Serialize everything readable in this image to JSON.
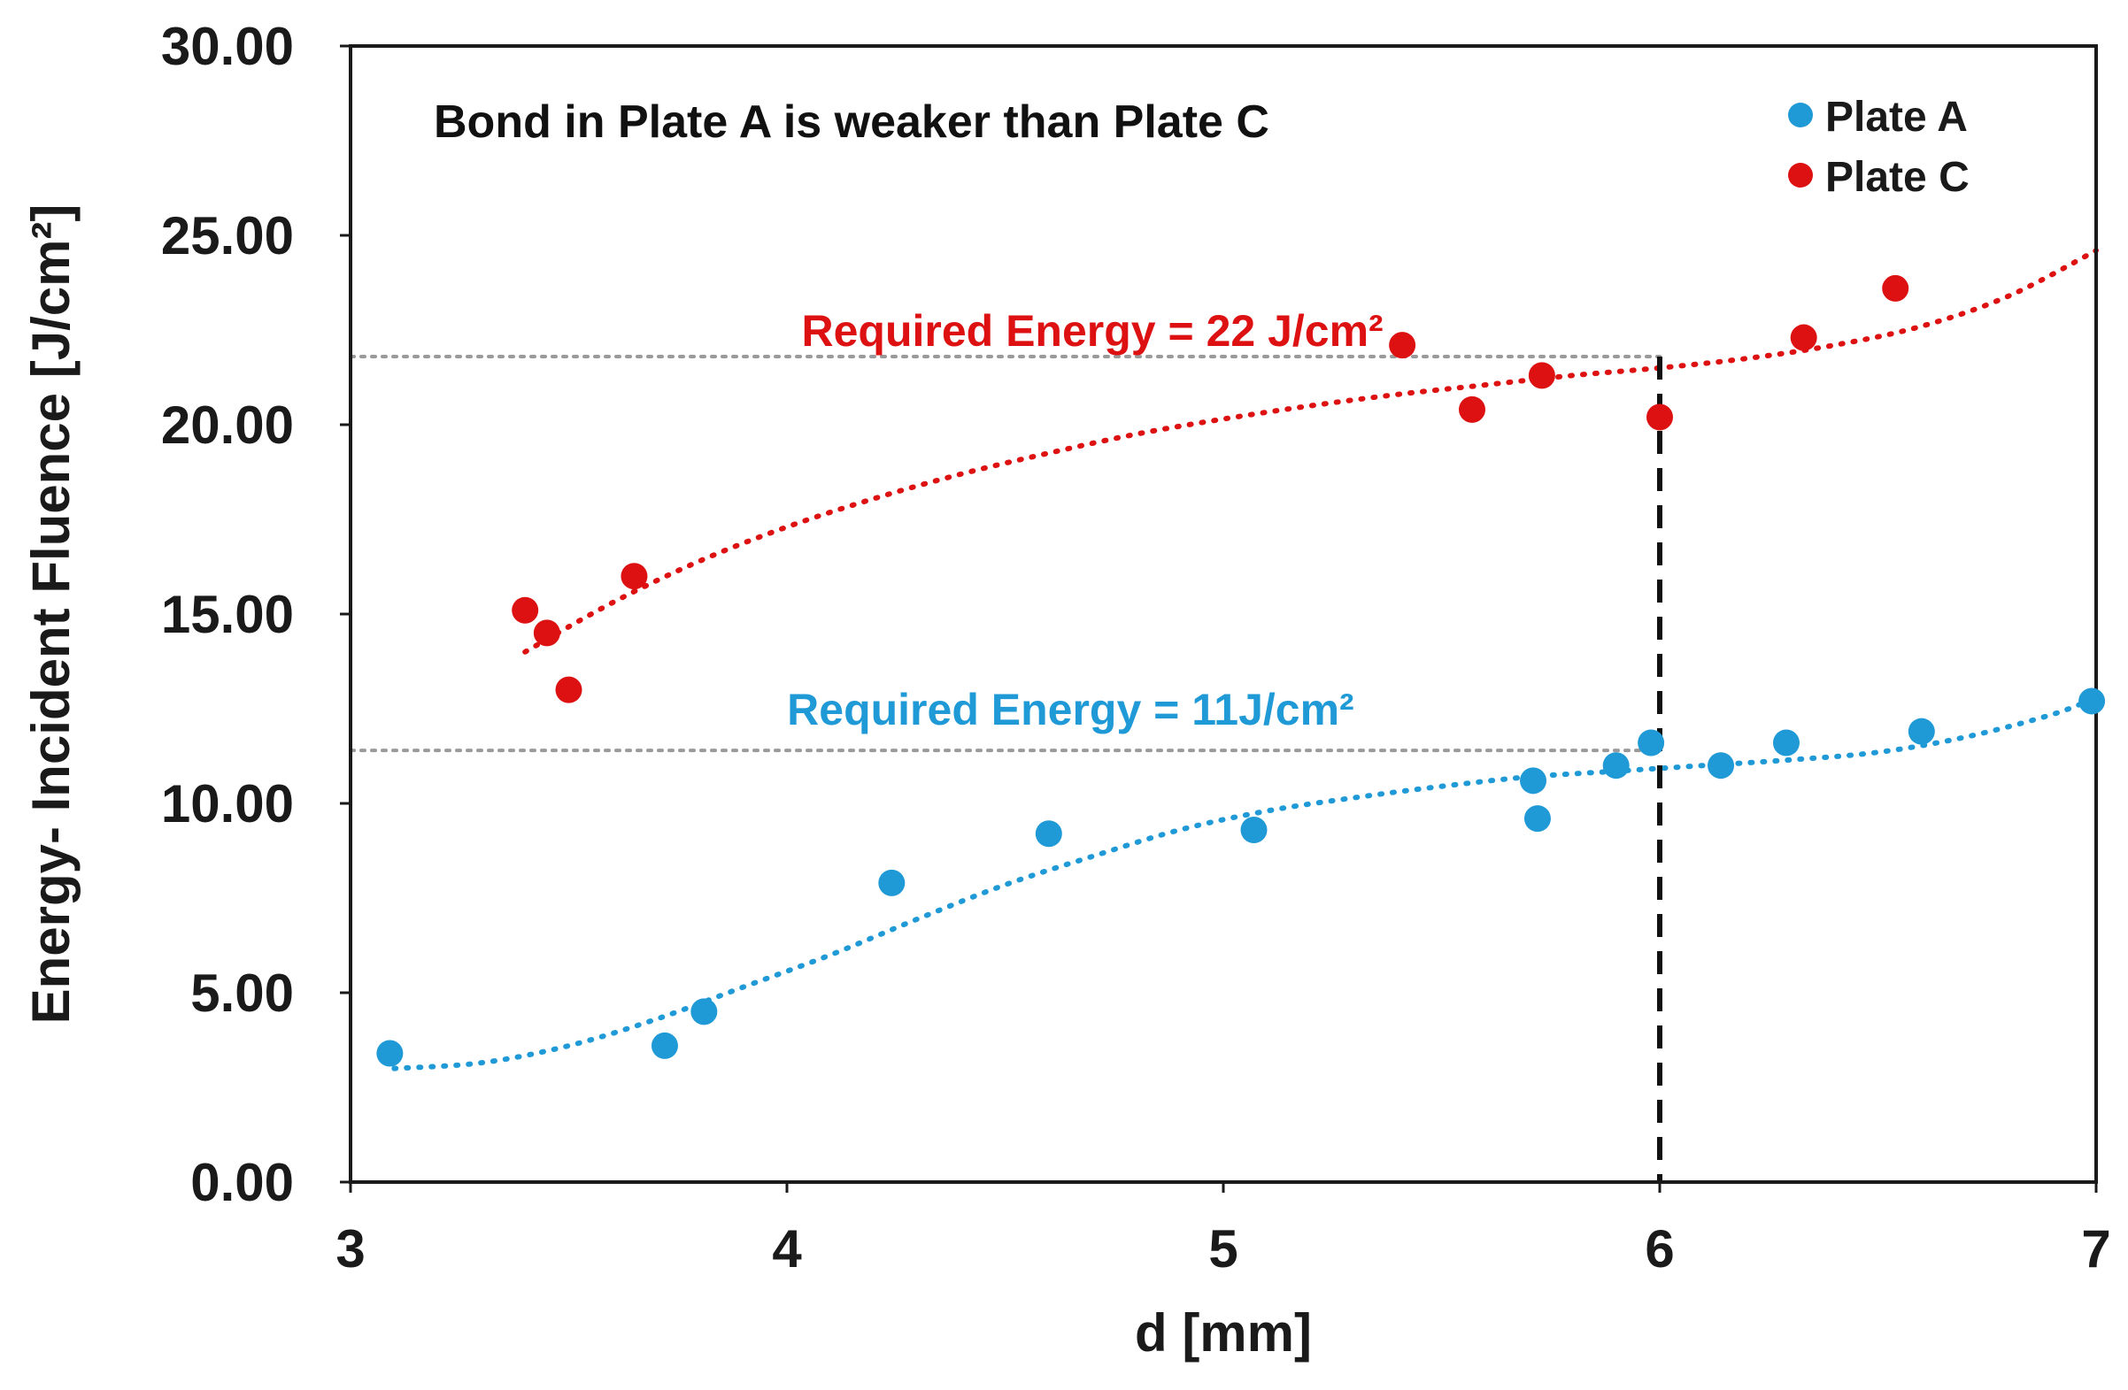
{
  "chart_data": {
    "type": "scatter",
    "title": "",
    "xlabel": "d [mm]",
    "ylabel": "Energy- Incident Fluence  [J/cm²]",
    "xlim": [
      3,
      7
    ],
    "ylim": [
      0,
      30
    ],
    "x_ticks": [
      "3",
      "4",
      "5",
      "6",
      "7"
    ],
    "y_ticks": [
      "0.00",
      "5.00",
      "10.00",
      "15.00",
      "20.00",
      "25.00",
      "30.00"
    ],
    "grid": false,
    "legend_position": "top-right",
    "annotation": "Bond in Plate A is weaker than Plate C",
    "series": [
      {
        "name": "Plate A",
        "color": "#1f9ad6",
        "points": [
          [
            3.09,
            3.4
          ],
          [
            3.72,
            3.6
          ],
          [
            3.81,
            4.5
          ],
          [
            4.24,
            7.9
          ],
          [
            4.6,
            9.2
          ],
          [
            5.07,
            9.3
          ],
          [
            5.71,
            10.6
          ],
          [
            5.72,
            9.6
          ],
          [
            5.9,
            11.0
          ],
          [
            5.98,
            11.6
          ],
          [
            6.14,
            11.0
          ],
          [
            6.29,
            11.6
          ],
          [
            6.6,
            11.9
          ],
          [
            6.99,
            12.7
          ]
        ],
        "trend": [
          [
            3.1,
            3.0
          ],
          [
            3.3,
            3.15
          ],
          [
            3.5,
            3.6
          ],
          [
            3.7,
            4.3
          ],
          [
            3.9,
            5.15
          ],
          [
            4.1,
            6.0
          ],
          [
            4.3,
            6.95
          ],
          [
            4.5,
            7.85
          ],
          [
            4.7,
            8.6
          ],
          [
            4.9,
            9.3
          ],
          [
            5.1,
            9.8
          ],
          [
            5.3,
            10.15
          ],
          [
            5.5,
            10.45
          ],
          [
            5.7,
            10.7
          ],
          [
            5.9,
            10.85
          ],
          [
            6.1,
            11.0
          ],
          [
            6.3,
            11.15
          ],
          [
            6.5,
            11.35
          ],
          [
            6.7,
            11.75
          ],
          [
            6.9,
            12.35
          ],
          [
            7.0,
            12.8
          ]
        ]
      },
      {
        "name": "Plate C",
        "color": "#dd1111",
        "points": [
          [
            3.4,
            15.1
          ],
          [
            3.45,
            14.5
          ],
          [
            3.5,
            13.0
          ],
          [
            3.65,
            16.0
          ],
          [
            5.41,
            22.1
          ],
          [
            5.57,
            20.4
          ],
          [
            5.73,
            21.3
          ],
          [
            6.0,
            20.2
          ],
          [
            6.33,
            22.3
          ],
          [
            6.54,
            23.6
          ]
        ],
        "trend": [
          [
            3.4,
            14.0
          ],
          [
            3.6,
            15.3
          ],
          [
            3.8,
            16.4
          ],
          [
            4.0,
            17.3
          ],
          [
            4.2,
            18.05
          ],
          [
            4.4,
            18.7
          ],
          [
            4.6,
            19.25
          ],
          [
            4.8,
            19.75
          ],
          [
            5.0,
            20.15
          ],
          [
            5.2,
            20.5
          ],
          [
            5.4,
            20.8
          ],
          [
            5.6,
            21.05
          ],
          [
            5.8,
            21.3
          ],
          [
            6.0,
            21.5
          ],
          [
            6.2,
            21.75
          ],
          [
            6.4,
            22.1
          ],
          [
            6.6,
            22.6
          ],
          [
            6.8,
            23.4
          ],
          [
            7.0,
            24.6
          ]
        ]
      }
    ],
    "reference_lines": [
      {
        "y": 21.8,
        "label": "Required Energy = 22 J/cm²",
        "label_x": 4.7,
        "label_y": 22.5,
        "color": "#dd1111"
      },
      {
        "y": 11.4,
        "label": "Required Energy = 11J/cm²",
        "label_x": 4.65,
        "label_y": 12.5,
        "color": "#1f9ad6"
      }
    ],
    "vertical_line": {
      "x": 6.0,
      "y_top": 21.8,
      "color": "#111111"
    }
  }
}
